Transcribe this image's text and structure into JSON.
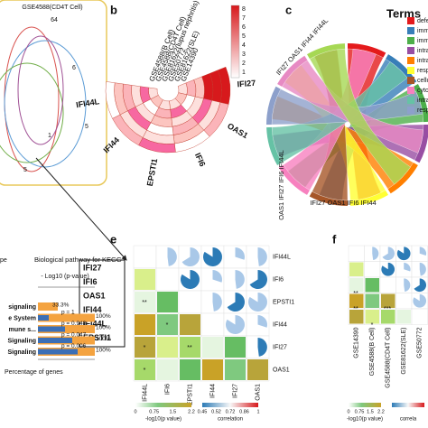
{
  "panel_a": {
    "set_title": "GSE4588(CD4T Cell)",
    "counts": [
      "64",
      "6",
      "5",
      "1",
      "5"
    ],
    "genes": [
      "IFI27",
      "IFI6",
      "OAS1",
      "IFI44",
      "IFI44L",
      "EPSTI1"
    ]
  },
  "panel_b": {
    "label": "b",
    "datasets": [
      "GSE4588(B Cell)",
      "GSE4588(CD4T Cell)",
      "GSE81622(lupus nephritis)",
      "GSE50772",
      "GSE81622(SLE)",
      "GSE14390"
    ],
    "genes": [
      "IFI27",
      "OAS1",
      "IFI6",
      "EPSTI1",
      "IFI44",
      "IFI44L"
    ],
    "colorbar_ticks": [
      "8",
      "7",
      "6",
      "5",
      "4",
      "3",
      "2",
      "1"
    ]
  },
  "panel_c": {
    "label": "c",
    "legend_title": "Terms",
    "legend_items": [
      "defe",
      "imm",
      "imm",
      "intra",
      "intra",
      "resp",
      "cellu",
      "cyto",
      "intra",
      "resp"
    ],
    "gene_labels": [
      "IFI27 OAS1 IFI44 IFI44L",
      "OAS1 IFI27 IFI6 IFI44L",
      "IFI27 OAS1 IFI6 IFI44"
    ]
  },
  "panel_d": {
    "type_label": "pe",
    "title": "Biological pathway for KEGG",
    "axis_top": "- Log10 (p-value)",
    "axis_bottom": "Percentage of genes",
    "pathways": [
      "signaling",
      "e System",
      "mune s...",
      "Signaling",
      "Signaling"
    ],
    "percent_labels": [
      "33.3%",
      "100%",
      "100%",
      "100%",
      "100%"
    ],
    "p_labels": [
      "p = 1",
      "p = 0.948",
      "p = 0.047",
      "p = 0.006"
    ]
  },
  "panel_e": {
    "label": "e",
    "genes": [
      "IFI44L",
      "IFI6",
      "EPSTI1",
      "IFI44",
      "IFI27",
      "OAS1"
    ],
    "stars": [
      "**",
      "*",
      "**",
      "*",
      "*"
    ],
    "legend_p_title": "-log10(p value)",
    "legend_p_ticks": [
      "0",
      "0.75",
      "1.5",
      "2.2"
    ],
    "legend_r_title": "correlation",
    "legend_r_ticks": [
      "0.45",
      "0.52",
      "0.72",
      "0.86",
      "1"
    ]
  },
  "panel_f": {
    "label": "f",
    "datasets": [
      "GSE14390",
      "GSE4588(B Cell)",
      "GSE4588(CD4T Cell)",
      "GSE81622(SLE)",
      "GSE50772"
    ],
    "stars": [
      "**",
      "**",
      "***",
      "*"
    ],
    "legend_p_title": "-log10(p value)",
    "legend_p_ticks": [
      "0",
      "0.75",
      "1.5",
      "2.2"
    ],
    "legend_r_title": "correla"
  }
}
